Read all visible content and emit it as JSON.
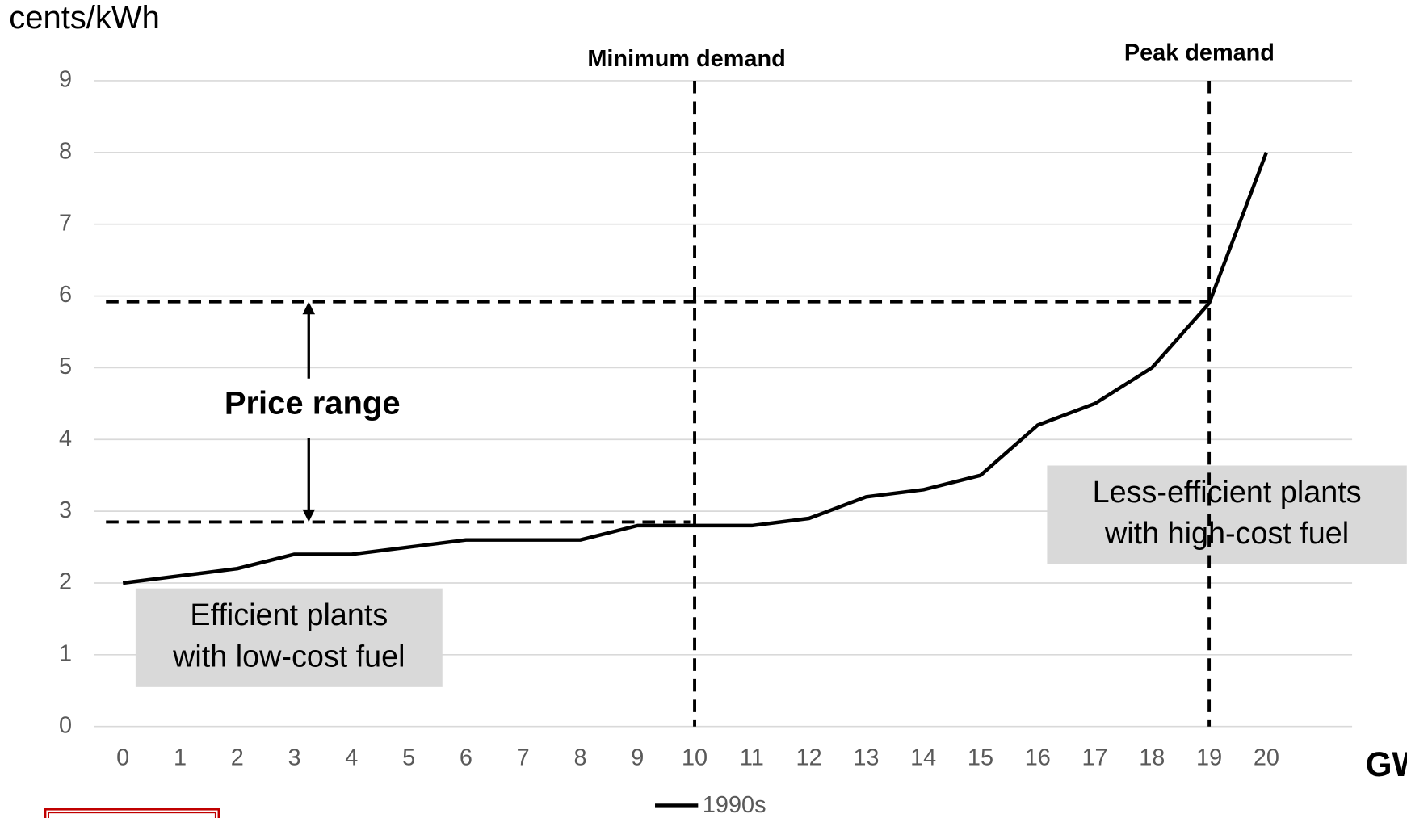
{
  "chart_data": {
    "type": "line",
    "y_label": "cents/kWh",
    "x_label": "GW",
    "x": [
      0,
      1,
      2,
      3,
      4,
      5,
      6,
      7,
      8,
      9,
      10,
      11,
      12,
      13,
      14,
      15,
      16,
      17,
      18,
      19,
      20
    ],
    "series": [
      {
        "name": "1990s",
        "color": "#000000",
        "values": [
          2,
          2.1,
          2.2,
          2.4,
          2.4,
          2.5,
          2.6,
          2.6,
          2.6,
          2.8,
          2.8,
          2.8,
          2.9,
          3.2,
          3.3,
          3.5,
          4.2,
          4.5,
          5.0,
          5.9,
          8
        ]
      }
    ],
    "xlim": [
      -0.5,
      21.5
    ],
    "xticks": [
      0,
      1,
      2,
      3,
      4,
      5,
      6,
      7,
      8,
      9,
      10,
      11,
      12,
      13,
      14,
      15,
      16,
      17,
      18,
      19,
      20
    ],
    "ylim": [
      0,
      9
    ],
    "yticks": [
      0,
      1,
      2,
      3,
      4,
      5,
      6,
      7,
      8,
      9
    ],
    "grid": true,
    "legend": "bottom",
    "vlines": [
      {
        "x": 10,
        "label": "Minimum demand"
      },
      {
        "x": 19,
        "label": "Peak demand"
      }
    ],
    "hlines": [
      5.92,
      2.85
    ],
    "range_label": "Price range",
    "boxes": [
      {
        "lines": [
          "Efficient plants",
          "with low-cost fuel"
        ]
      },
      {
        "lines": [
          "Less-efficient plants",
          "with high-cost fuel"
        ]
      }
    ]
  }
}
